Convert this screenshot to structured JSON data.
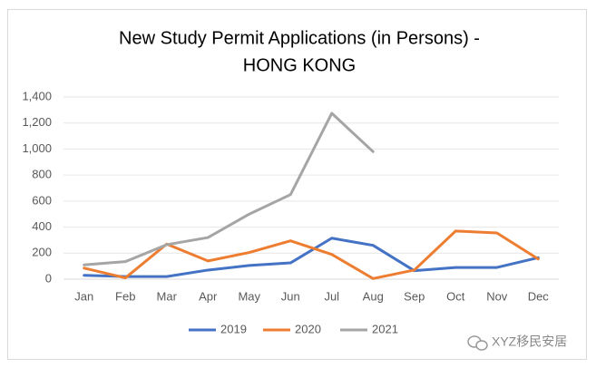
{
  "chart_data": {
    "type": "line",
    "title": [
      "New Study Permit Applications (in Persons) -",
      "HONG KONG"
    ],
    "categories": [
      "Jan",
      "Feb",
      "Mar",
      "Apr",
      "May",
      "Jun",
      "Jul",
      "Aug",
      "Sep",
      "Oct",
      "Nov",
      "Dec"
    ],
    "series": [
      {
        "name": "2019",
        "color": "#4472c4",
        "values": [
          30,
          20,
          20,
          70,
          105,
          125,
          315,
          260,
          65,
          90,
          90,
          165
        ]
      },
      {
        "name": "2020",
        "color": "#ed7d31",
        "values": [
          85,
          10,
          270,
          140,
          205,
          295,
          190,
          5,
          70,
          370,
          355,
          155
        ]
      },
      {
        "name": "2021",
        "color": "#a5a5a5",
        "values": [
          110,
          135,
          265,
          320,
          500,
          650,
          1275,
          980,
          null,
          null,
          null,
          null
        ]
      }
    ],
    "ylim": [
      0,
      1400
    ],
    "yticks": [
      0,
      200,
      400,
      600,
      800,
      {
        "value": 1000,
        "label": "1,000"
      },
      {
        "value": 1200,
        "label": "1,200"
      },
      {
        "value": 1400,
        "label": "1,400"
      }
    ],
    "grid": true,
    "legend": "bottom",
    "watermark": "XYZ移民安居"
  }
}
